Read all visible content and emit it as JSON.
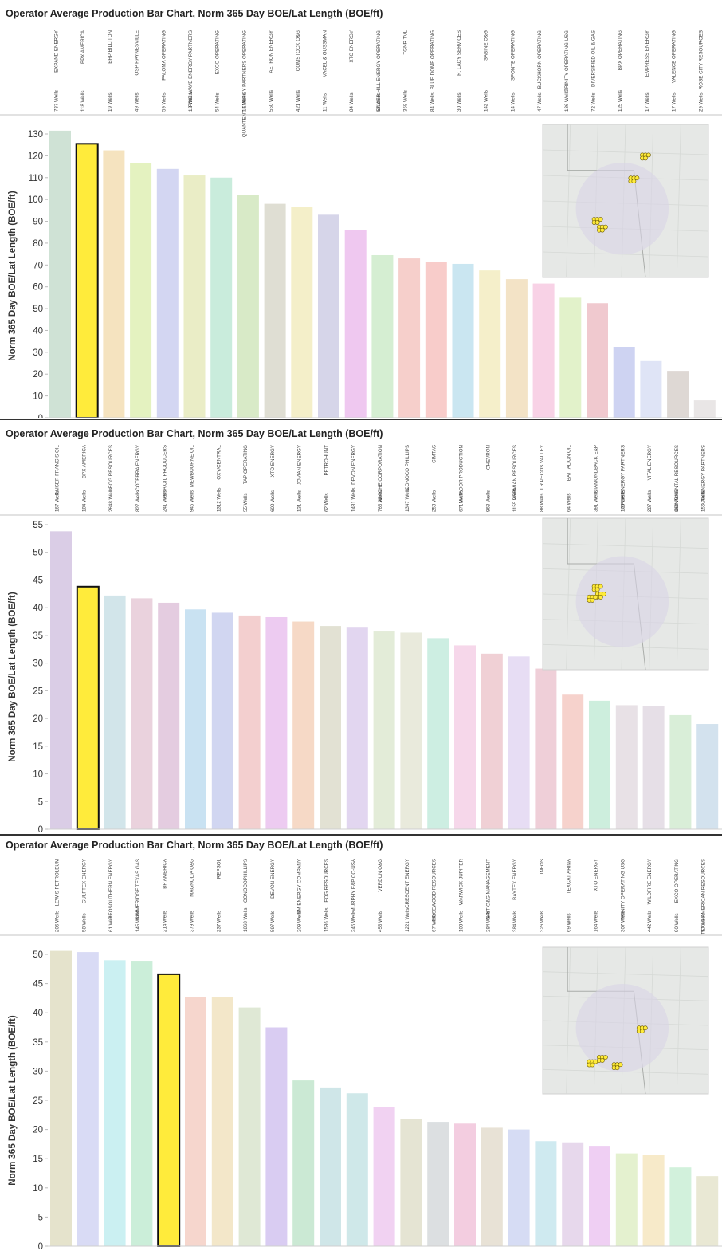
{
  "chart_data": [
    {
      "type": "bar",
      "title": "Operator Average Production Bar Chart, Norm 365 Day BOE/Lat Length (BOE/ft)",
      "ylabel": "Norm 365 Day BOE/Lat Length (BOE/ft)",
      "ylim": [
        0,
        130
      ],
      "yticks": [
        0,
        10,
        20,
        30,
        40,
        50,
        60,
        70,
        80,
        90,
        100,
        110,
        120,
        130
      ],
      "highlight_index": 1,
      "categories": [
        "EXPAND ENERGY",
        "BPX AMERICA",
        "BHP BILLITON",
        "OSP HAYNESVILLE",
        "PALOMA OPERATING",
        "PINE WAVE ENERGY PARTNERS",
        "EXCO OPERATING",
        "QUANTENT ENERGY PARTNERS OPERATING",
        "AETHON ENERGY",
        "COMSTOCK O&G",
        "VACEL & GUSSMAN",
        "XTO ENERGY",
        "SILVER HILL ENERGY OPERATING",
        "TGNR TVL",
        "BLUE DOME OPERATING",
        "R. LACY SERVICES",
        "SABINE O&G",
        "SPONTE OPERATING",
        "BUCKHORN OPERATING",
        "TRINITY OPERATING USG",
        "DIVERSIFIED OIL & GAS",
        "BPX OPERATING",
        "EMPRESS ENERGY",
        "VALENCE OPERATING",
        "ROSE CITY RESOURCES"
      ],
      "well_labels": [
        "737 Wells",
        "118 Wells",
        "19 Wells",
        "49 Wells",
        "59 Wells",
        "12 Wells",
        "54 Wells",
        "14 Wells",
        "550 Wells",
        "421 Wells",
        "11 Wells",
        "84 Wells",
        "57 Wells",
        "358 Wells",
        "84 Wells",
        "30 Wells",
        "142 Wells",
        "14 Wells",
        "47 Wells",
        "186 Wells",
        "72 Wells",
        "125 Wells",
        "17 Wells",
        "17 Wells",
        "29 Wells"
      ],
      "values": [
        131.5,
        125.5,
        122.5,
        116.5,
        114,
        111,
        110,
        102,
        98,
        96.5,
        93,
        86,
        74.5,
        73,
        71.5,
        70.5,
        67.5,
        63.5,
        61.5,
        55,
        52.5,
        32.5,
        26,
        21.5,
        8
      ],
      "colors": [
        "#cfe2d5",
        "#ffeb3b",
        "#f5e3bf",
        "#e4f2c0",
        "#d3d6f2",
        "#eaedc6",
        "#c9ecdc",
        "#d8eac7",
        "#dfded3",
        "#f4efc9",
        "#d6d5e9",
        "#efc8f0",
        "#d5eed2",
        "#f6cfcb",
        "#f8ccca",
        "#cae6f1",
        "#f5efca",
        "#f3e3c6",
        "#f8d2e6",
        "#e2f2ca",
        "#f0c9cf",
        "#ced3f2",
        "#dfe4f6",
        "#ded8d4",
        "#e9e6e6"
      ]
    },
    {
      "type": "bar",
      "title": "Operator Average Production Bar Chart, Norm 365 Day BOE/Lat Length (BOE/ft)",
      "ylabel": "Norm 365 Day BOE/Lat Length (BOE/ft)",
      "ylim": [
        0,
        55
      ],
      "yticks": [
        0,
        5,
        10,
        15,
        20,
        25,
        30,
        35,
        40,
        45,
        50,
        55
      ],
      "highlight_index": 1,
      "categories": [
        "KAISER FRANCIS OIL",
        "BPX AMERICA",
        "EOG RESOURCES",
        "COTERRA ENERGY",
        "BTA OIL PRODUCERS",
        "MEWBOURNE OIL",
        "OXY/CENTRAL",
        "TAP OPERATING",
        "XTO ENERGY",
        "JOVIAN ENERGY",
        "PETROHUNT",
        "DEVON ENERGY",
        "APACHE CORPORATION",
        "CONOCO PHILLIPS",
        "CIMTAS",
        "MATADOR PRODUCTION",
        "CHEVRON",
        "PERMIAN RESOURCES",
        "LR PECOS VALLEY",
        "BATTALION OIL",
        "DIAMONDBACK E&P",
        "SPUR ENERGY PARTNERS",
        "VITAL ENERGY",
        "CONTINENTAL RESOURCES",
        "VTX ENERGY PARTNERS"
      ],
      "well_labels": [
        "167 Wells",
        "184 Wells",
        "2648 Wells",
        "827 Wells",
        "241 Wells",
        "945 Wells",
        "1312 Wells",
        "55 Wells",
        "600 Wells",
        "131 Wells",
        "62 Wells",
        "1481 Wells",
        "765 Wells",
        "1347 Wells",
        "253 Wells",
        "671 Wells",
        "963 Wells",
        "1155 Wells",
        "88 Wells",
        "64 Wells",
        "391 Wells",
        "165 Wells",
        "287 Wells",
        "360 Wells",
        "155 Wells"
      ],
      "values": [
        53.8,
        43.8,
        42.2,
        41.7,
        40.9,
        39.7,
        39.1,
        38.6,
        38.3,
        37.5,
        36.7,
        36.4,
        35.7,
        35.5,
        34.5,
        33.2,
        31.7,
        31.2,
        29,
        24.3,
        23.2,
        22.4,
        22.2,
        20.6,
        19
      ],
      "colors": [
        "#dacde6",
        "#ffeb3b",
        "#d2e5ea",
        "#ead2dd",
        "#e4cce0",
        "#c9e2f2",
        "#d1d6f1",
        "#f3cfcf",
        "#edcbf1",
        "#f6d9c6",
        "#e2e1d3",
        "#e2d6f0",
        "#e3ecd8",
        "#e9eadc",
        "#cdeee2",
        "#f6d7ea",
        "#f0d0d5",
        "#e7ddf4",
        "#efcfd8",
        "#f6d2cc",
        "#cdeedd",
        "#e8e1e6",
        "#e6dfe7",
        "#d9eed8",
        "#d3e2ee"
      ]
    },
    {
      "type": "bar",
      "title": "Operator Average Production Bar Chart, Norm 365 Day BOE/Lat Length (BOE/ft)",
      "ylabel": "Norm 365 Day BOE/Lat Length (BOE/ft)",
      "ylim": [
        0,
        50
      ],
      "yticks": [
        0,
        5,
        10,
        15,
        20,
        25,
        30,
        35,
        40,
        45,
        50
      ],
      "highlight_index": 4,
      "categories": [
        "LEWIS PETROLEUM",
        "GULFTEX ENERGY",
        "GEOSOUTHERN ENERGY",
        "KIMMERIDGE TEXAS GAS",
        "BP AMERICA",
        "MAGNOLIA O&G",
        "REPSOL",
        "CONOCOPHILLIPS",
        "DEVON ENERGY",
        "SM ENERGY COMPANY",
        "EOG RESOURCES",
        "MURPHY E&P CO-USA",
        "VERDUN O&G",
        "CRESCENT ENERGY",
        "ROSEWOOD RESOURCES",
        "WARWICK-JUPITER",
        "GRIT O&G MANAGEMENT",
        "BAYTEX ENERGY",
        "INEOS",
        "TEXCAT ARINA",
        "XTO ENERGY",
        "TRINITY OPERATING USG",
        "WILDFIRE ENERGY",
        "EXCO OPERATING",
        "TEXAS AMERICAN RESOURCES"
      ],
      "well_labels": [
        "206 Wells",
        "58 Wells",
        "61 Wells",
        "145 Wells",
        "214 Wells",
        "379 Wells",
        "237 Wells",
        "1868 Wells",
        "597 Wells",
        "209 Wells",
        "1586 Wells",
        "245 Wells",
        "455 Wells",
        "1221 Wells",
        "67 Wells",
        "100 Wells",
        "284 Wells",
        "384 Wells",
        "326 Wells",
        "69 Wells",
        "164 Wells",
        "307 Wells",
        "442 Wells",
        "90 Wells",
        "57 Wells"
      ],
      "values": [
        50.6,
        50.4,
        49,
        48.9,
        46.6,
        42.7,
        42.7,
        40.9,
        37.5,
        28.4,
        27.2,
        26.2,
        23.9,
        21.8,
        21.3,
        21,
        20.3,
        20,
        18,
        17.8,
        17.2,
        15.9,
        15.6,
        13.5,
        12
      ],
      "colors": [
        "#e5e3cc",
        "#d9dbf5",
        "#cbf0f2",
        "#cbeed9",
        "#ffeb3b",
        "#f6d6cd",
        "#f3e7c9",
        "#dfe8d5",
        "#d9ccf2",
        "#cbe9d4",
        "#cfe6e8",
        "#cfe8e9",
        "#f1d2f2",
        "#e5e4d3",
        "#dcdfe1",
        "#f3cde0",
        "#e8e2d6",
        "#d6dcf4",
        "#cfeaf0",
        "#e7d8ec",
        "#efcff3",
        "#e4f1cf",
        "#f7eac9",
        "#d2f1dc",
        "#e9e8d4"
      ]
    }
  ],
  "maps": [
    {
      "label": "map-inset-1"
    },
    {
      "label": "map-inset-2"
    },
    {
      "label": "map-inset-3"
    }
  ]
}
